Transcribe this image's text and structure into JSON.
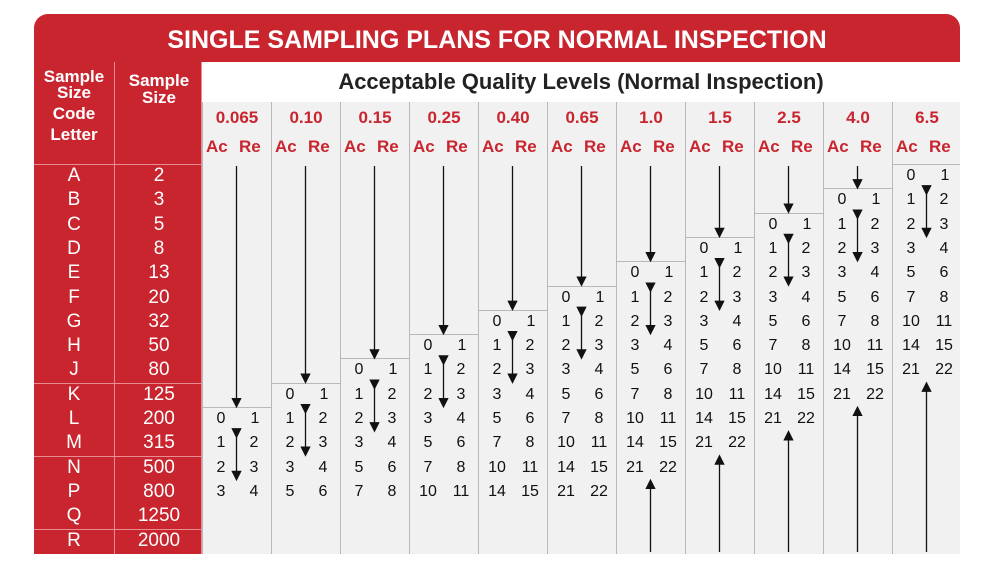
{
  "title": "SINGLE SAMPLING PLANS FOR NORMAL INSPECTION",
  "headers": {
    "code_letter": [
      "Sample",
      "Size",
      "Code",
      "Letter"
    ],
    "sample_size": [
      "Sample",
      "Size"
    ],
    "aql_banner": "Acceptable Quality Levels (Normal Inspection)",
    "ac": "Ac",
    "re": "Re"
  },
  "aql_levels": [
    "0.065",
    "0.10",
    "0.15",
    "0.25",
    "0.40",
    "0.65",
    "1.0",
    "1.5",
    "2.5",
    "4.0",
    "6.5"
  ],
  "rows": [
    {
      "code": "A",
      "size": "2"
    },
    {
      "code": "B",
      "size": "3"
    },
    {
      "code": "C",
      "size": "5"
    },
    {
      "code": "D",
      "size": "8"
    },
    {
      "code": "E",
      "size": "13"
    },
    {
      "code": "F",
      "size": "20"
    },
    {
      "code": "G",
      "size": "32"
    },
    {
      "code": "H",
      "size": "50"
    },
    {
      "code": "J",
      "size": "80"
    },
    {
      "code": "K",
      "size": "125"
    },
    {
      "code": "L",
      "size": "200"
    },
    {
      "code": "M",
      "size": "315"
    },
    {
      "code": "N",
      "size": "500"
    },
    {
      "code": "P",
      "size": "800"
    },
    {
      "code": "Q",
      "size": "1250"
    },
    {
      "code": "R",
      "size": "2000"
    }
  ],
  "plans": {
    "0.065": {
      "start": 10,
      "values": [
        [
          0,
          1
        ],
        [
          1,
          2
        ],
        [
          2,
          3
        ],
        [
          3,
          4
        ]
      ],
      "arrows": [
        "down",
        "updown"
      ]
    },
    "0.10": {
      "start": 9,
      "values": [
        [
          0,
          1
        ],
        [
          1,
          2
        ],
        [
          2,
          3
        ],
        [
          3,
          4
        ],
        [
          5,
          6
        ]
      ],
      "arrows": [
        "down",
        "updown"
      ]
    },
    "0.15": {
      "start": 8,
      "values": [
        [
          0,
          1
        ],
        [
          1,
          2
        ],
        [
          2,
          3
        ],
        [
          3,
          4
        ],
        [
          5,
          6
        ],
        [
          7,
          8
        ]
      ],
      "arrows": [
        "down",
        "updown"
      ]
    },
    "0.25": {
      "start": 7,
      "values": [
        [
          0,
          1
        ],
        [
          1,
          2
        ],
        [
          2,
          3
        ],
        [
          3,
          4
        ],
        [
          5,
          6
        ],
        [
          7,
          8
        ],
        [
          10,
          11
        ]
      ],
      "arrows": [
        "down",
        "updown"
      ]
    },
    "0.40": {
      "start": 6,
      "values": [
        [
          0,
          1
        ],
        [
          1,
          2
        ],
        [
          2,
          3
        ],
        [
          3,
          4
        ],
        [
          5,
          6
        ],
        [
          7,
          8
        ],
        [
          10,
          11
        ],
        [
          14,
          15
        ]
      ],
      "arrows": [
        "down",
        "updown"
      ]
    },
    "0.65": {
      "start": 5,
      "values": [
        [
          0,
          1
        ],
        [
          1,
          2
        ],
        [
          2,
          3
        ],
        [
          3,
          4
        ],
        [
          5,
          6
        ],
        [
          7,
          8
        ],
        [
          10,
          11
        ],
        [
          14,
          15
        ],
        [
          21,
          22
        ]
      ],
      "arrows": [
        "down",
        "updown"
      ]
    },
    "1.0": {
      "start": 4,
      "values": [
        [
          0,
          1
        ],
        [
          1,
          2
        ],
        [
          2,
          3
        ],
        [
          3,
          4
        ],
        [
          5,
          6
        ],
        [
          7,
          8
        ],
        [
          10,
          11
        ],
        [
          14,
          15
        ],
        [
          21,
          22
        ]
      ],
      "arrows": [
        "down",
        "updown",
        "up"
      ]
    },
    "1.5": {
      "start": 3,
      "values": [
        [
          0,
          1
        ],
        [
          1,
          2
        ],
        [
          2,
          3
        ],
        [
          3,
          4
        ],
        [
          5,
          6
        ],
        [
          7,
          8
        ],
        [
          10,
          11
        ],
        [
          14,
          15
        ],
        [
          21,
          22
        ]
      ],
      "arrows": [
        "down",
        "updown",
        "up"
      ]
    },
    "2.5": {
      "start": 2,
      "values": [
        [
          0,
          1
        ],
        [
          1,
          2
        ],
        [
          2,
          3
        ],
        [
          3,
          4
        ],
        [
          5,
          6
        ],
        [
          7,
          8
        ],
        [
          10,
          11
        ],
        [
          14,
          15
        ],
        [
          21,
          22
        ]
      ],
      "arrows": [
        "down",
        "updown",
        "up"
      ]
    },
    "4.0": {
      "start": 1,
      "values": [
        [
          0,
          1
        ],
        [
          1,
          2
        ],
        [
          2,
          3
        ],
        [
          3,
          4
        ],
        [
          5,
          6
        ],
        [
          7,
          8
        ],
        [
          10,
          11
        ],
        [
          14,
          15
        ],
        [
          21,
          22
        ]
      ],
      "arrows": [
        "down",
        "updown",
        "up"
      ]
    },
    "6.5": {
      "start": 0,
      "values": [
        [
          0,
          1
        ],
        [
          1,
          2
        ],
        [
          2,
          3
        ],
        [
          3,
          4
        ],
        [
          5,
          6
        ],
        [
          7,
          8
        ],
        [
          10,
          11
        ],
        [
          14,
          15
        ],
        [
          21,
          22
        ]
      ],
      "arrows": [
        "updown",
        "up"
      ]
    }
  },
  "colors": {
    "brand_red": "#c8252f",
    "panel_gray": "#f1f1f1",
    "text": "#111111"
  }
}
